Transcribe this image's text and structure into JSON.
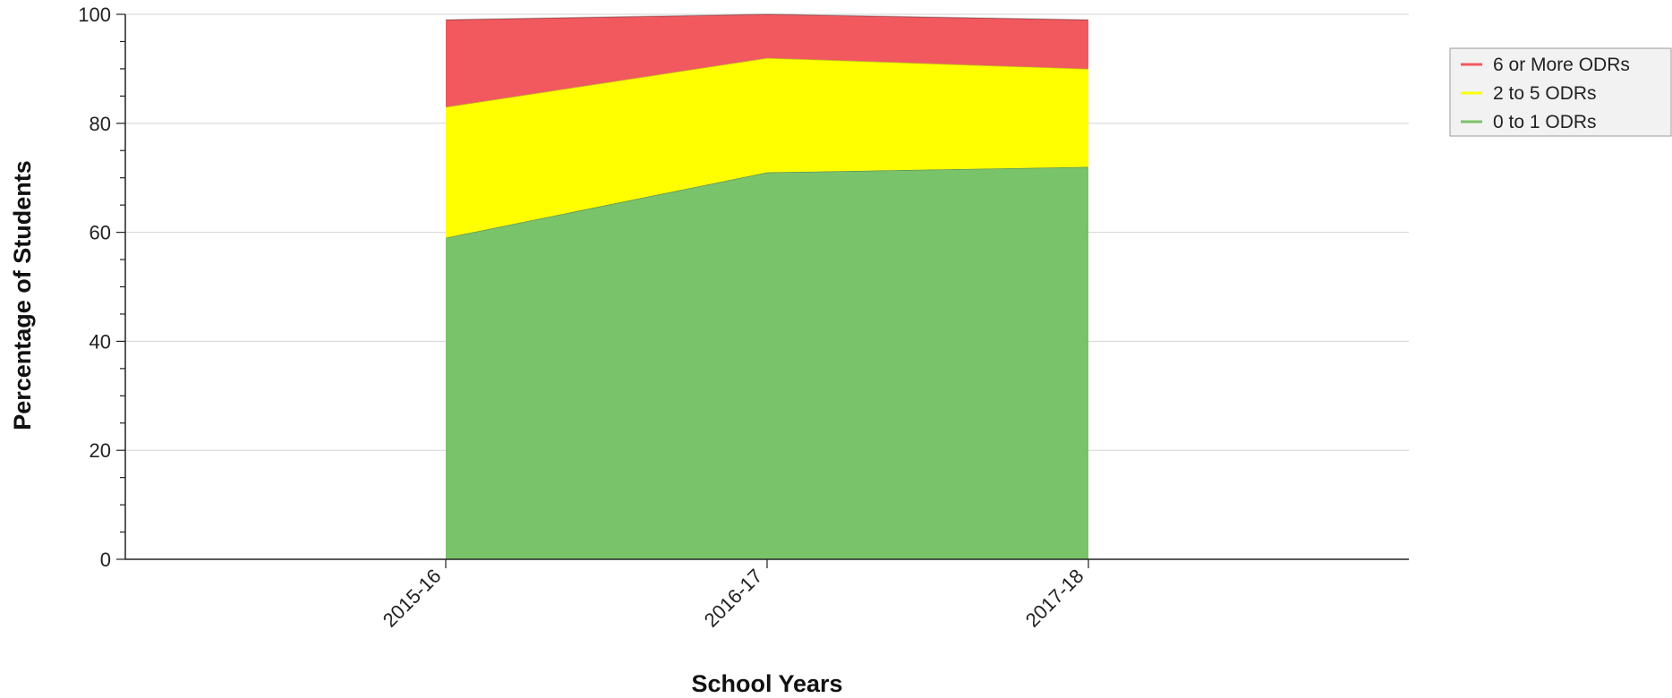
{
  "chart_data": {
    "type": "area",
    "stacked": true,
    "categories": [
      "2015-16",
      "2016-17",
      "2017-18"
    ],
    "series": [
      {
        "name": "0 to 1 ODRs",
        "values": [
          59,
          71,
          72
        ],
        "color": "#79c36a"
      },
      {
        "name": "2 to 5 ODRs",
        "values": [
          24,
          21,
          18
        ],
        "color": "#ffff00"
      },
      {
        "name": "6 or More ODRs",
        "values": [
          16,
          8,
          9
        ],
        "color": "#f1595f"
      }
    ],
    "legend_order": [
      "6 or More ODRs",
      "2 to 5 ODRs",
      "0 to 1 ODRs"
    ],
    "xlabel": "School Years",
    "ylabel": "Percentage of Students",
    "ylim": [
      0,
      100
    ],
    "yticks": [
      0,
      20,
      40,
      60,
      80,
      100
    ],
    "grid": true,
    "legend_position": "top-right"
  }
}
